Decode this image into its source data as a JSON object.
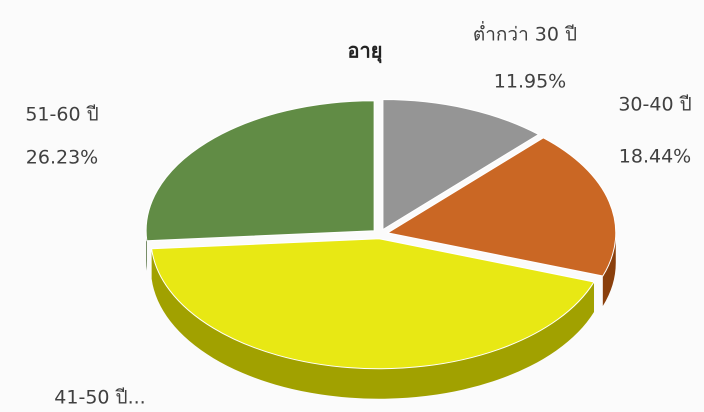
{
  "chart_data": {
    "type": "pie",
    "title": "อายุ",
    "categories": [
      "ต่ำกว่า 30 ปี",
      "30-40 ปี",
      "41-50 ปี...",
      "51-60 ปี"
    ],
    "values": [
      11.95,
      18.44,
      43.38,
      26.23
    ],
    "value_labels": [
      "11.95%",
      "18.44%",
      null,
      "26.23%"
    ],
    "colors": [
      "#8c8c8c",
      "#c55a11",
      "#e6e600",
      "#548235"
    ]
  }
}
